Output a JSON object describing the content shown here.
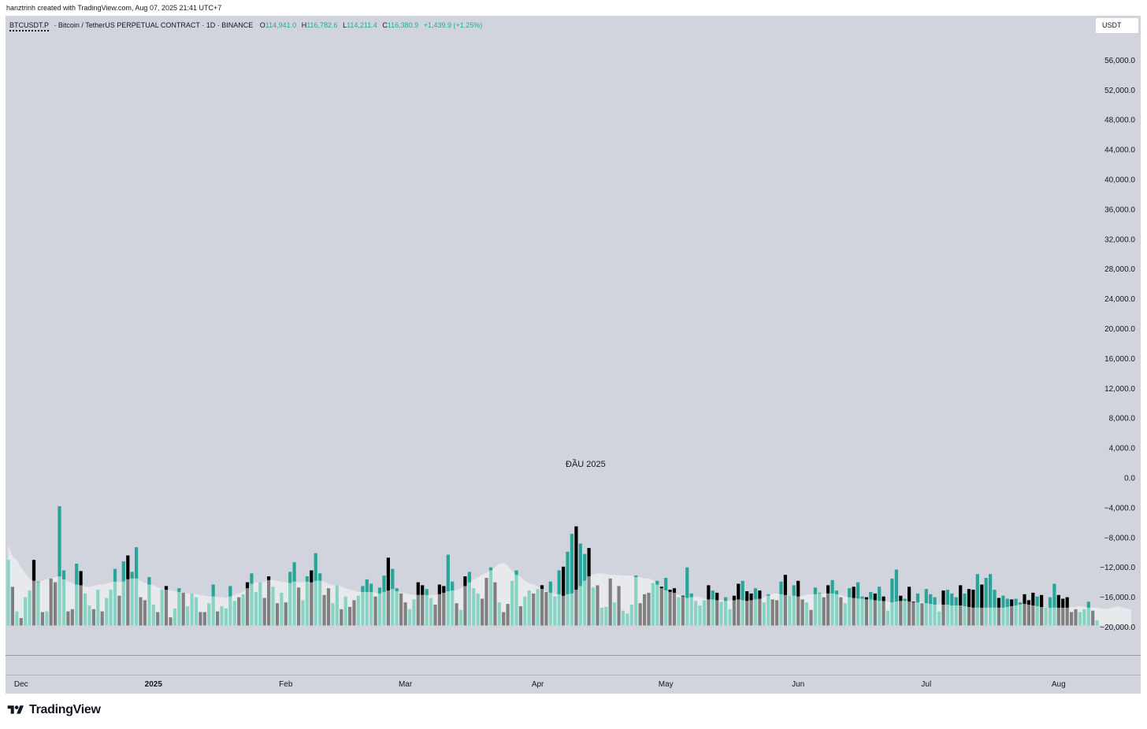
{
  "header": {
    "caption": "hanztrinh created with TradingView.com, Aug 07, 2025 21:41 UTC+7"
  },
  "legend": {
    "symbol": "BTCUSDT.P",
    "description": "· Bitcoin / TetherUS PERPETUAL CONTRACT · 1D · BINANCE",
    "open_label": "O",
    "open": "114,941.0",
    "high_label": "H",
    "high": "116,782.6",
    "low_label": "L",
    "low": "114,211.4",
    "close_label": "C",
    "close": "116,380.9",
    "change": "+1,439.9 (+1.25%)"
  },
  "currency": "USDT",
  "brand": "TradingView",
  "colors": {
    "up_bar": "#26a69a",
    "down_bar": "#000000",
    "up_below": "#89d3c4",
    "down_below": "#808080",
    "band": "#e8e9ed",
    "background": "#d1d4dc"
  },
  "chart_data": {
    "type": "bar",
    "y_axis": {
      "ticks": [
        "56,000.0",
        "52,000.0",
        "48,000.0",
        "44,000.0",
        "40,000.0",
        "36,000.0",
        "32,000.0",
        "28,000.0",
        "24,000.0",
        "20,000.0",
        "16,000.0",
        "12,000.0",
        "8,000.0",
        "4,000.0",
        "0.0",
        "−4,000.0",
        "−8,000.0",
        "−12,000.0",
        "−16,000.0",
        "−20,000.0"
      ],
      "tick_values": [
        56000,
        52000,
        48000,
        44000,
        40000,
        36000,
        32000,
        28000,
        24000,
        20000,
        16000,
        12000,
        8000,
        4000,
        0,
        -4000,
        -8000,
        -12000,
        -16000,
        -20000
      ],
      "range": [
        -20000,
        58000
      ]
    },
    "x_axis": {
      "labels": [
        {
          "text": "Dec",
          "bold": false,
          "day": 3
        },
        {
          "text": "2025",
          "bold": true,
          "day": 34
        },
        {
          "text": "Feb",
          "bold": false,
          "day": 65
        },
        {
          "text": "Mar",
          "bold": false,
          "day": 93
        },
        {
          "text": "Apr",
          "bold": false,
          "day": 124
        },
        {
          "text": "May",
          "bold": false,
          "day": 154
        },
        {
          "text": "Jun",
          "bold": false,
          "day": 185
        },
        {
          "text": "Jul",
          "bold": false,
          "day": 215
        },
        {
          "text": "Aug",
          "bold": false,
          "day": 246
        }
      ],
      "first_date": "2024-11-29",
      "last_date": "2025-08-07"
    },
    "annotation": {
      "text": "ĐẦU 2025",
      "day": 133
    },
    "series": [
      {
        "values": [
          -11000,
          -14600,
          -17900,
          -18800,
          -16000,
          -15100,
          -11000,
          -13900,
          -18000,
          -17900,
          -13500,
          -14000,
          -3800,
          -12400,
          -17900,
          -17600,
          -11500,
          -12500,
          -15500,
          -17100,
          -17600,
          -15000,
          -17900,
          -16100,
          -15000,
          -12200,
          -15800,
          -11200,
          -10400,
          -12600,
          -9300,
          -16000,
          -16400,
          -13300,
          -17000,
          -18000,
          -15000,
          -14500,
          -18700,
          -17500,
          -14800,
          -15400,
          -17200,
          -15500,
          -16000,
          -18000,
          -18000,
          -16800,
          -14300,
          -17900,
          -17200,
          -17500,
          -14500,
          -16500,
          -16000,
          -15600,
          -14000,
          -12800,
          -15300,
          -14000,
          -16100,
          -13200,
          -14600,
          -16800,
          -15400,
          -16700,
          -12600,
          -11300,
          -14700,
          -16400,
          -13200,
          -12400,
          -10100,
          -12800,
          -15700,
          -14800,
          -16800,
          -14400,
          -17600,
          -15900,
          -17300,
          -16400,
          -15800,
          -14500,
          -13600,
          -14200,
          -15900,
          -14700,
          -13100,
          -10700,
          -12200,
          -14800,
          -15500,
          -16700,
          -17600,
          -16300,
          -14000,
          -14400,
          -14900,
          -16100,
          -17000,
          -14300,
          -14500,
          -10300,
          -13900,
          -16800,
          -17700,
          -13200,
          -12600,
          -14800,
          -15500,
          -16200,
          -13400,
          -12000,
          -14000,
          -16700,
          -18000,
          -16900,
          -13800,
          -12400,
          -17200,
          -15900,
          -15100,
          -15500,
          -14900,
          -14400,
          -15300,
          -13900,
          -15900,
          -12400,
          -11900,
          -9900,
          -7500,
          -6500,
          -8800,
          -10200,
          -9400,
          -14700,
          -14400,
          -17400,
          -17300,
          -13500,
          -16700,
          -14500,
          -17800,
          -18200,
          -17000,
          -13100,
          -16800,
          -15600,
          -15400,
          -14100,
          -13800,
          -14600,
          -13400,
          -15000,
          -14800,
          -16000,
          -15800,
          -12000,
          -15500,
          -16500,
          -17100,
          -16400,
          -14400,
          -15100,
          -15400,
          -16600,
          -16000,
          -17600,
          -15800,
          -14200,
          -13800,
          -15200,
          -15500,
          -14800,
          -15100,
          -16700,
          -15600,
          -16300,
          -16400,
          -13900,
          -13000,
          -15800,
          -14400,
          -13800,
          -16300,
          -16700,
          -17700,
          -14700,
          -15400,
          -16000,
          -14400,
          -13700,
          -15100,
          -16000,
          -16800,
          -14800,
          -14600,
          -14000,
          -15900,
          -16000,
          -15300,
          -15500,
          -14600,
          -15900,
          -17800,
          -13500,
          -12300,
          -15800,
          -16200,
          -14600,
          -16600,
          -15500,
          -16800,
          -14900,
          -15600,
          -16000,
          -17900,
          -15100,
          -15000,
          -15500,
          -16000,
          -14400,
          -15500,
          -14900,
          -15000,
          -12900,
          -14300,
          -13400,
          -12900,
          -15000,
          -16100,
          -15800,
          -16200,
          -16300,
          -16200,
          -16700,
          -15600,
          -16400,
          -15400,
          -15900,
          -15700,
          -17400,
          -16000,
          -14200,
          -15700,
          -16200,
          -16000,
          -18000,
          -17600,
          -18000,
          -17600,
          -16600,
          -17800,
          -19100
        ],
        "up": [
          1,
          0,
          1,
          0,
          1,
          1,
          0,
          1,
          0,
          1,
          0,
          0,
          1,
          1,
          0,
          0,
          1,
          0,
          1,
          1,
          0,
          1,
          0,
          1,
          1,
          1,
          0,
          1,
          0,
          1,
          1,
          0,
          0,
          1,
          1,
          0,
          1,
          0,
          0,
          1,
          1,
          0,
          1,
          1,
          1,
          0,
          0,
          1,
          1,
          0,
          1,
          1,
          1,
          1,
          0,
          1,
          0,
          1,
          1,
          1,
          0,
          0,
          1,
          0,
          1,
          0,
          1,
          1,
          0,
          1,
          1,
          0,
          1,
          1,
          0,
          0,
          1,
          1,
          0,
          1,
          0,
          0,
          1,
          1,
          1,
          1,
          0,
          1,
          1,
          0,
          1,
          1,
          0,
          0,
          1,
          1,
          0,
          0,
          1,
          1,
          0,
          0,
          0,
          1,
          1,
          0,
          1,
          0,
          1,
          1,
          1,
          0,
          0,
          1,
          0,
          1,
          0,
          0,
          1,
          1,
          0,
          1,
          1,
          0,
          1,
          0,
          0,
          1,
          1,
          1,
          0,
          1,
          1,
          0,
          1,
          1,
          0,
          1,
          0,
          1,
          1,
          0,
          1,
          0,
          1,
          1,
          1,
          1,
          0,
          0,
          0,
          1,
          1,
          0,
          1,
          0,
          0,
          1,
          0,
          1,
          1,
          1,
          1,
          1,
          0,
          1,
          0,
          1,
          1,
          1,
          0,
          0,
          1,
          0,
          0,
          1,
          0,
          1,
          1,
          0,
          0,
          1,
          0,
          1,
          1,
          0,
          0,
          1,
          0,
          1,
          1,
          0,
          0,
          1,
          1,
          0,
          1,
          1,
          0,
          1,
          1,
          0,
          1,
          0,
          1,
          0,
          1,
          1,
          1,
          0,
          1,
          0,
          0,
          1,
          0,
          1,
          1,
          1,
          1,
          0,
          1,
          1,
          1,
          0,
          1,
          0,
          0,
          1,
          0,
          1,
          1,
          1,
          0,
          1,
          1,
          0,
          1,
          1,
          0,
          0,
          0,
          1,
          0,
          1,
          1,
          1,
          0,
          0,
          0,
          0,
          0,
          1,
          1,
          1,
          0,
          1,
          1
        ]
      }
    ],
    "band": [
      -9000,
      -10500,
      -11000,
      -12000,
      -12800,
      -13500,
      -13800,
      -14000,
      -13800,
      -13600,
      -13500,
      -13300,
      -13200,
      -13600,
      -13900,
      -14100,
      -14300,
      -14400,
      -14600,
      -14600,
      -14500,
      -14300,
      -14300,
      -14200,
      -14000,
      -13900,
      -14000,
      -13900,
      -13600,
      -13500,
      -13500,
      -13800,
      -14100,
      -14300,
      -14400,
      -14700,
      -14900,
      -15000,
      -15100,
      -15200,
      -15300,
      -15400,
      -15500,
      -15500,
      -15600,
      -15700,
      -15800,
      -15900,
      -15900,
      -16000,
      -16000,
      -16100,
      -15900,
      -15700,
      -15500,
      -15300,
      -14800,
      -14200,
      -14000,
      -14000,
      -13900,
      -13700,
      -13700,
      -13800,
      -14000,
      -14000,
      -14100,
      -13900,
      -14000,
      -14000,
      -13900,
      -14000,
      -13800,
      -13800,
      -13900,
      -14200,
      -14400,
      -14400,
      -14600,
      -14800,
      -15000,
      -15100,
      -15300,
      -15300,
      -15300,
      -15300,
      -15400,
      -15500,
      -15300,
      -15100,
      -14900,
      -15200,
      -15400,
      -15500,
      -15600,
      -15700,
      -15700,
      -15700,
      -15700,
      -15700,
      -15700,
      -15600,
      -15400,
      -15200,
      -15100,
      -15000,
      -14800,
      -14500,
      -14000,
      -13600,
      -13300,
      -13000,
      -12700,
      -12400,
      -12000,
      -11500,
      -11400,
      -11800,
      -12500,
      -13000,
      -13300,
      -13800,
      -14100,
      -14300,
      -14600,
      -14900,
      -15200,
      -15400,
      -15600,
      -15600,
      -15800,
      -15600,
      -15500,
      -15000,
      -14500,
      -13800,
      -13200,
      -12900,
      -12800,
      -12800,
      -12900,
      -13000,
      -13000,
      -13000,
      -13100,
      -13100,
      -13100,
      -13300,
      -13300,
      -13500,
      -13500,
      -13700,
      -14300,
      -14800,
      -15100,
      -15300,
      -15400,
      -15700,
      -15900,
      -16100,
      -16000,
      -15900,
      -16000,
      -16200,
      -16300,
      -16300,
      -16400,
      -16400,
      -16500,
      -16500,
      -16400,
      -16300,
      -16400,
      -16500,
      -16400,
      -16300,
      -16200,
      -16000,
      -15800,
      -15500,
      -15500,
      -15600,
      -15700,
      -15800,
      -15800,
      -15900,
      -15800,
      -15700,
      -15600,
      -15600,
      -15500,
      -15500,
      -15500,
      -15500,
      -15600,
      -15700,
      -15900,
      -16000,
      -16100,
      -16200,
      -16200,
      -16300,
      -16300,
      -16400,
      -16500,
      -16500,
      -16600,
      -16700,
      -16600,
      -16500,
      -16500,
      -16600,
      -16700,
      -16700,
      -16600,
      -16800,
      -16900,
      -17000,
      -16900,
      -17000,
      -17000,
      -17100,
      -17100,
      -17100,
      -17200,
      -17300,
      -17400,
      -17400,
      -17400,
      -17400,
      -17400,
      -17400,
      -17400,
      -17400,
      -17300,
      -17200,
      -17100,
      -17000,
      -16900,
      -17000,
      -17100,
      -17200,
      -17300,
      -17400,
      -17400,
      -17400,
      -17400,
      -17400,
      -17400,
      -17300,
      -17300,
      -17200,
      -17300,
      -17400,
      -17400,
      -17400,
      -17500,
      -17600,
      -17500,
      -17300,
      -17200,
      -17400,
      -17500,
      -17700
    ]
  }
}
